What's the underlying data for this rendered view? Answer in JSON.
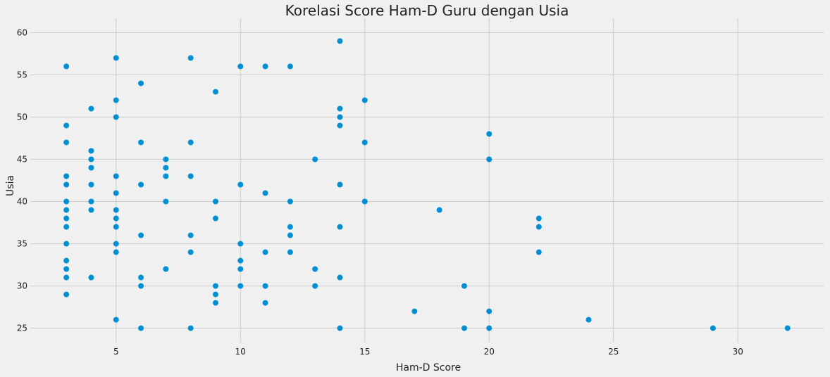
{
  "chart_data": {
    "type": "scatter",
    "title": "Korelasi Score Ham-D Guru dengan Usia",
    "xlabel": "Ham-D Score",
    "ylabel": "Usia",
    "xlim": [
      1.55,
      33.45
    ],
    "ylim": [
      23.3,
      61.7
    ],
    "xticks": [
      5,
      10,
      15,
      20,
      25,
      30
    ],
    "yticks": [
      25,
      30,
      35,
      40,
      45,
      50,
      55,
      60
    ],
    "grid": true,
    "series": [
      {
        "color": "#008fd5",
        "points": [
          [
            3,
            56
          ],
          [
            3,
            49
          ],
          [
            3,
            47
          ],
          [
            3,
            43
          ],
          [
            3,
            42
          ],
          [
            3,
            40
          ],
          [
            3,
            39
          ],
          [
            3,
            38
          ],
          [
            3,
            37
          ],
          [
            3,
            35
          ],
          [
            3,
            33
          ],
          [
            3,
            32
          ],
          [
            3,
            31
          ],
          [
            3,
            29
          ],
          [
            4,
            51
          ],
          [
            4,
            46
          ],
          [
            4,
            45
          ],
          [
            4,
            44
          ],
          [
            4,
            42
          ],
          [
            4,
            40
          ],
          [
            4,
            39
          ],
          [
            4,
            31
          ],
          [
            5,
            57
          ],
          [
            5,
            52
          ],
          [
            5,
            50
          ],
          [
            5,
            43
          ],
          [
            5,
            41
          ],
          [
            5,
            39
          ],
          [
            5,
            38
          ],
          [
            5,
            37
          ],
          [
            5,
            35
          ],
          [
            5,
            34
          ],
          [
            5,
            26
          ],
          [
            6,
            54
          ],
          [
            6,
            47
          ],
          [
            6,
            42
          ],
          [
            6,
            36
          ],
          [
            6,
            31
          ],
          [
            6,
            30
          ],
          [
            6,
            25
          ],
          [
            7,
            45
          ],
          [
            7,
            44
          ],
          [
            7,
            43
          ],
          [
            7,
            40
          ],
          [
            7,
            32
          ],
          [
            8,
            57
          ],
          [
            8,
            47
          ],
          [
            8,
            43
          ],
          [
            8,
            36
          ],
          [
            8,
            34
          ],
          [
            8,
            25
          ],
          [
            9,
            53
          ],
          [
            9,
            40
          ],
          [
            9,
            38
          ],
          [
            9,
            30
          ],
          [
            9,
            29
          ],
          [
            9,
            28
          ],
          [
            10,
            56
          ],
          [
            10,
            42
          ],
          [
            10,
            35
          ],
          [
            10,
            33
          ],
          [
            10,
            32
          ],
          [
            10,
            30
          ],
          [
            11,
            56
          ],
          [
            11,
            41
          ],
          [
            11,
            34
          ],
          [
            11,
            30
          ],
          [
            11,
            28
          ],
          [
            12,
            56
          ],
          [
            12,
            40
          ],
          [
            12,
            37
          ],
          [
            12,
            36
          ],
          [
            12,
            34
          ],
          [
            13,
            45
          ],
          [
            13,
            32
          ],
          [
            13,
            30
          ],
          [
            14,
            59
          ],
          [
            14,
            51
          ],
          [
            14,
            50
          ],
          [
            14,
            49
          ],
          [
            14,
            42
          ],
          [
            14,
            37
          ],
          [
            14,
            31
          ],
          [
            14,
            25
          ],
          [
            15,
            52
          ],
          [
            15,
            47
          ],
          [
            15,
            40
          ],
          [
            17,
            27
          ],
          [
            18,
            39
          ],
          [
            19,
            30
          ],
          [
            19,
            25
          ],
          [
            20,
            48
          ],
          [
            20,
            45
          ],
          [
            20,
            27
          ],
          [
            20,
            25
          ],
          [
            22,
            38
          ],
          [
            22,
            37
          ],
          [
            22,
            34
          ],
          [
            24,
            26
          ],
          [
            29,
            25
          ],
          [
            32,
            25
          ]
        ]
      }
    ]
  }
}
